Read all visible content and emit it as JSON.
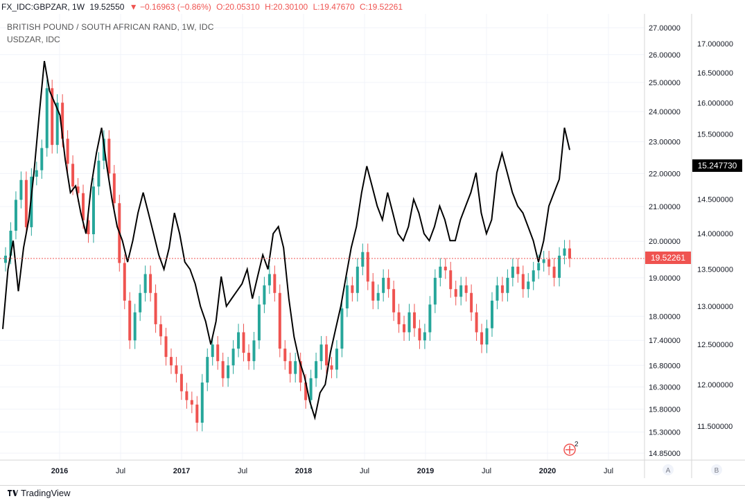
{
  "header": {
    "symbol": "FX_IDC:GBPZAR, 1W",
    "last": "19.52550",
    "change": "▼ −0.16963 (−0.86%)",
    "open": "O:20.05310",
    "high": "H:20.30100",
    "low": "L:19.47670",
    "close": "C:19.52261"
  },
  "legend": {
    "main": "BRITISH POUND / SOUTH AFRICAN RAND, 1W, IDC",
    "compare": "USDZAR, IDC"
  },
  "footer": {
    "brand": "TradingView"
  },
  "scale_buttons": {
    "a": "A",
    "b": "B"
  },
  "events_badge": "2",
  "colors": {
    "up": "#26a69a",
    "down": "#ef5350",
    "compare_line": "#000000",
    "price_line": "#ef5350"
  },
  "chart_data": {
    "type": "candlestick",
    "x_ticks": [
      "2016",
      "Jul",
      "2017",
      "Jul",
      "2018",
      "Jul",
      "2019",
      "Jul",
      "2020",
      "Jul"
    ],
    "left_axis_ticks": [
      "27.00000",
      "26.00000",
      "25.00000",
      "24.00000",
      "23.00000",
      "22.00000",
      "21.00000",
      "20.00000",
      "19.00000",
      "18.00000",
      "17.40000",
      "16.80000",
      "16.30000",
      "15.80000",
      "15.30000",
      "14.85000"
    ],
    "right_axis_ticks": [
      "17.000000",
      "16.500000",
      "16.000000",
      "15.500000",
      "15.000000",
      "14.500000",
      "14.000000",
      "13.500000",
      "13.000000",
      "12.500000",
      "12.000000",
      "11.500000"
    ],
    "log_scale": true,
    "current_price": "19.52261",
    "current_compare": "15.247730",
    "series": [
      {
        "symbol": "GBPZAR",
        "closes": [
          19.6,
          20.3,
          21.2,
          21.8,
          20.4,
          21.9,
          22.1,
          22.8,
          24.8,
          22.9,
          24.3,
          23.1,
          22.3,
          21.6,
          21.4,
          20.6,
          20.2,
          21.6,
          22.4,
          23.1,
          22.0,
          21.1,
          19.4,
          18.4,
          17.4,
          18.1,
          18.6,
          19.1,
          18.6,
          17.8,
          17.5,
          17.0,
          16.8,
          16.6,
          16.2,
          16.0,
          15.9,
          15.5,
          16.4,
          17.0,
          17.3,
          16.9,
          16.5,
          16.8,
          17.2,
          17.6,
          17.1,
          16.9,
          17.4,
          18.3,
          18.8,
          19.1,
          18.6,
          17.2,
          16.9,
          16.6,
          16.9,
          16.4,
          16.0,
          16.5,
          16.9,
          17.3,
          16.8,
          16.7,
          17.2,
          18.2,
          18.8,
          18.6,
          19.3,
          19.7,
          18.9,
          18.4,
          18.6,
          19.0,
          18.7,
          18.1,
          17.8,
          17.6,
          18.1,
          17.7,
          17.4,
          17.6,
          18.3,
          19.0,
          19.3,
          19.2,
          18.7,
          18.5,
          18.8,
          18.6,
          18.1,
          17.6,
          17.3,
          17.7,
          18.4,
          18.8,
          18.6,
          19.0,
          19.3,
          19.1,
          18.7,
          18.9,
          19.2,
          19.4,
          19.5,
          19.3,
          19.0,
          19.6,
          19.8,
          19.52
        ]
      },
      {
        "symbol": "USDZAR",
        "closes": [
          12.7,
          13.5,
          13.9,
          13.2,
          13.8,
          14.2,
          14.9,
          15.8,
          16.7,
          16.2,
          16.0,
          15.8,
          15.1,
          14.6,
          14.7,
          14.3,
          14.0,
          14.7,
          15.2,
          15.6,
          15.0,
          14.5,
          14.1,
          13.9,
          13.6,
          13.9,
          14.3,
          14.6,
          14.3,
          14.0,
          13.7,
          13.5,
          13.8,
          14.3,
          14.0,
          13.6,
          13.5,
          13.3,
          13.0,
          12.8,
          12.5,
          12.8,
          13.4,
          13.0,
          13.1,
          13.2,
          13.3,
          13.5,
          13.1,
          13.4,
          13.7,
          13.5,
          14.0,
          14.1,
          13.8,
          13.1,
          12.6,
          12.3,
          12.1,
          11.8,
          11.6,
          11.9,
          12.0,
          12.4,
          12.7,
          13.0,
          13.4,
          13.8,
          14.1,
          14.6,
          15.0,
          14.7,
          14.4,
          14.2,
          14.6,
          14.3,
          14.0,
          13.9,
          14.1,
          14.5,
          14.3,
          14.0,
          13.9,
          14.1,
          14.4,
          14.2,
          13.9,
          13.9,
          14.2,
          14.4,
          14.6,
          14.9,
          14.3,
          14.0,
          14.2,
          14.9,
          15.2,
          14.9,
          14.6,
          14.4,
          14.3,
          14.1,
          13.9,
          13.6,
          13.9,
          14.4,
          14.6,
          14.8,
          15.6,
          15.25
        ]
      }
    ]
  }
}
